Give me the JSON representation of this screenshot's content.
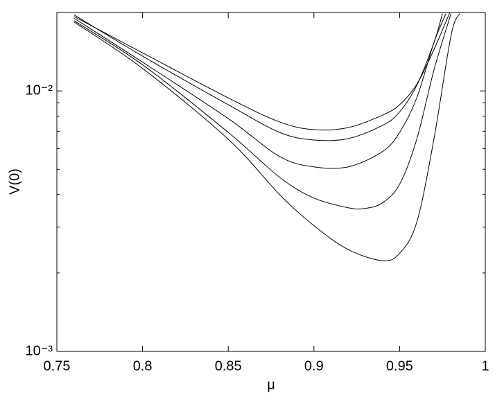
{
  "chart_data": {
    "type": "line",
    "xlabel": "μ",
    "ylabel": "V(0)",
    "log_y": true,
    "xlim": [
      0.75,
      1
    ],
    "xticks": [
      0.75,
      0.8,
      0.85,
      0.9,
      0.95,
      1
    ],
    "ylim": [
      0.001,
      0.02
    ],
    "yticks": [
      {
        "value": 0.001,
        "label": "10⁻³"
      },
      {
        "value": 0.01,
        "label": "10⁻²"
      }
    ],
    "yminorticks": [
      0.002,
      0.003,
      0.004,
      0.005,
      0.006,
      0.007,
      0.008,
      0.009
    ],
    "series": [
      {
        "color": "#000000",
        "x": [
          0.76,
          0.8,
          0.85,
          0.88,
          0.9,
          0.92,
          0.94,
          0.95,
          0.96,
          0.97,
          0.98
        ],
        "values": [
          0.0193,
          0.014,
          0.0094,
          0.0076,
          0.0071,
          0.00723,
          0.00807,
          0.00885,
          0.0106,
          0.0144,
          0.0205
        ]
      },
      {
        "color": "#000000",
        "x": [
          0.76,
          0.8,
          0.85,
          0.88,
          0.9,
          0.92,
          0.94,
          0.95,
          0.96,
          0.97,
          0.975
        ],
        "values": [
          0.0196,
          0.0136,
          0.00885,
          0.00693,
          0.00648,
          0.00656,
          0.00737,
          0.0083,
          0.0105,
          0.0153,
          0.0198
        ]
      },
      {
        "color": "#000000",
        "x": [
          0.76,
          0.8,
          0.85,
          0.88,
          0.9,
          0.92,
          0.94,
          0.95,
          0.96,
          0.97,
          0.977
        ],
        "values": [
          0.019,
          0.0129,
          0.00783,
          0.0056,
          0.00511,
          0.00511,
          0.00585,
          0.00693,
          0.0094,
          0.0153,
          0.0198
        ]
      },
      {
        "color": "#000000",
        "x": [
          0.76,
          0.8,
          0.85,
          0.88,
          0.9,
          0.92,
          0.93,
          0.94,
          0.95,
          0.96,
          0.97,
          0.98
        ],
        "values": [
          0.0186,
          0.0126,
          0.00693,
          0.00466,
          0.00388,
          0.00356,
          0.00354,
          0.00372,
          0.00438,
          0.00652,
          0.012,
          0.0198
        ]
      },
      {
        "color": "#000000",
        "x": [
          0.76,
          0.8,
          0.85,
          0.88,
          0.9,
          0.92,
          0.94,
          0.95,
          0.96,
          0.97,
          0.98,
          0.985
        ],
        "values": [
          0.0184,
          0.0122,
          0.00652,
          0.004,
          0.00304,
          0.00246,
          0.00223,
          0.00238,
          0.00313,
          0.00652,
          0.0163,
          0.0198
        ]
      }
    ]
  }
}
